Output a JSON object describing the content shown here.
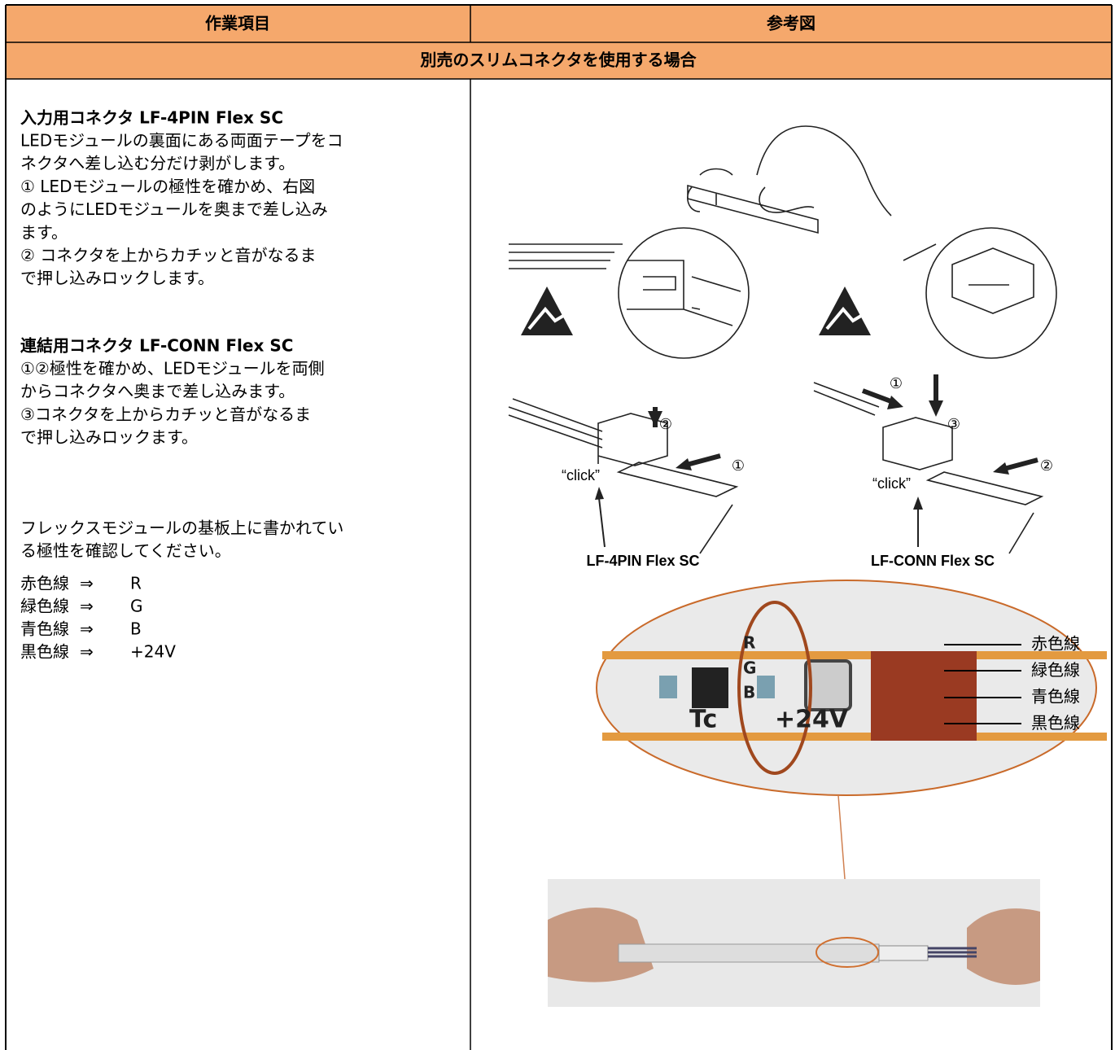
{
  "table": {
    "headers": [
      "作業項目",
      "参考図"
    ],
    "section": "別売のスリムコネクタを使用する場合",
    "left": {
      "title1": "入力用コネクタ LF-4PIN Flex SC",
      "lines1": [
        "LEDモジュールの裏面にある両面テープをコ",
        "ネクタへ差し込む分だけ剥がします。",
        "① LEDモジュールの極性を確かめ、右図",
        "のようにLEDモジュールを奥まで差し込み",
        "ます。",
        "② コネクタを上からカチッと音がなるま",
        "で押し込みロックします。"
      ],
      "title2": "連結用コネクタ LF-CONN Flex SC",
      "lines2": [
        "①②極性を確かめ、LEDモジュールを両側",
        "からコネクタへ奥まで差し込みます。",
        "③コネクタを上からカチッと音がなるま",
        "で押し込みロックます。"
      ],
      "note": [
        "フレックスモジュールの基板上に書かれてい",
        "る極性を確認してください。"
      ],
      "wires": [
        [
          "赤色線",
          "⇒",
          "R"
        ],
        [
          "緑色線",
          "⇒",
          "G"
        ],
        [
          "青色線",
          "⇒",
          "B"
        ],
        [
          "黒色線",
          "⇒",
          "+24V"
        ]
      ]
    },
    "figure": {
      "clicks": [
        "“click”",
        "“click”"
      ],
      "steps_left": [
        "②",
        "①"
      ],
      "steps_right": [
        "①",
        "③",
        "②"
      ],
      "callouts": [
        "LF-4PIN Flex SC",
        "LF-CONN Flex SC"
      ],
      "pcb": [
        "R",
        "G",
        "B",
        "Tc",
        "+24V"
      ],
      "wire_labels": [
        "赤色線",
        "緑色線",
        "青色線",
        "黒色線"
      ]
    }
  }
}
